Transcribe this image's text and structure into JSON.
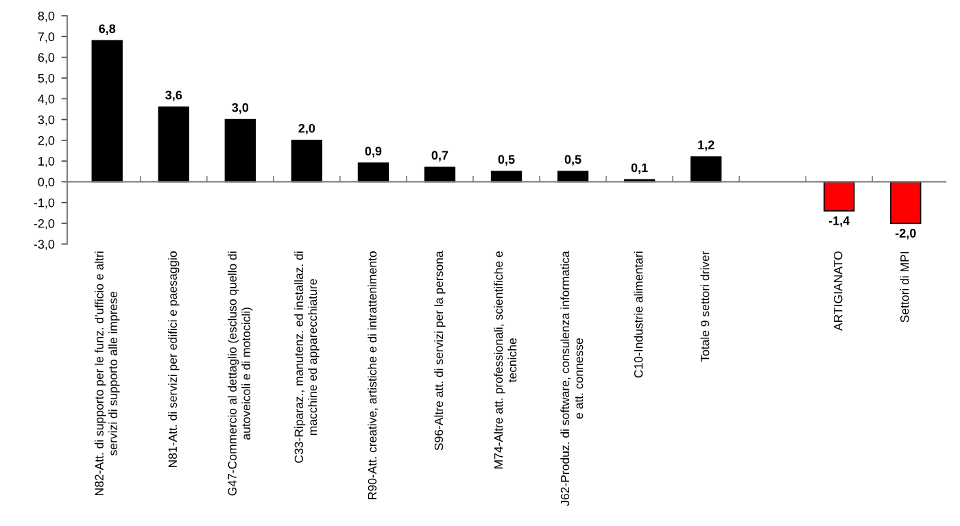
{
  "chart_data": {
    "type": "bar",
    "categories": [
      "N82-Att. di supporto per le funz. d'ufficio e altri\nservizi di supporto alle imprese",
      "N81-Att. di servizi per edifici e paesaggio",
      "G47-Commercio al dettaglio (escluso quello di\nautoveicoli e di motocicli)",
      "C33-Riparaz., manutenz. ed installaz. di\nmacchine ed apparecchiature",
      "R90-Att. creative, artistiche e di intrattenimento",
      "S96-Altre att. di servizi per la persona",
      "M74-Altre att. professionali, scientifiche e\ntecniche",
      "J62-Produz. di software, consulenza informatica\ne att. connesse",
      "C10-Industrie alimentari",
      "Totale 9 settori driver",
      null,
      "ARTIGIANATO",
      "Settori di MPI"
    ],
    "values": [
      6.8,
      3.6,
      3.0,
      2.0,
      0.9,
      0.7,
      0.5,
      0.5,
      0.1,
      1.2,
      null,
      -1.4,
      -2.0
    ],
    "colors": [
      "#000000",
      "#000000",
      "#000000",
      "#000000",
      "#000000",
      "#000000",
      "#000000",
      "#000000",
      "#000000",
      "#000000",
      "#000000",
      "#ff0000",
      "#ff0000"
    ],
    "value_labels": [
      "6,8",
      "3,6",
      "3,0",
      "2,0",
      "0,9",
      "0,7",
      "0,5",
      "0,5",
      "0,1",
      "1,2",
      null,
      "-1,4",
      "-2,0"
    ],
    "ylim": [
      -3.0,
      8.0
    ],
    "yticks": [
      {
        "value": -3.0,
        "label": "-3,0"
      },
      {
        "value": -2.0,
        "label": "-2,0"
      },
      {
        "value": -1.0,
        "label": "-1,0"
      },
      {
        "value": 0.0,
        "label": "0,0"
      },
      {
        "value": 1.0,
        "label": "1,0"
      },
      {
        "value": 2.0,
        "label": "2,0"
      },
      {
        "value": 3.0,
        "label": "3,0"
      },
      {
        "value": 4.0,
        "label": "4,0"
      },
      {
        "value": 5.0,
        "label": "5,0"
      },
      {
        "value": 6.0,
        "label": "6,0"
      },
      {
        "value": 7.0,
        "label": "7,0"
      },
      {
        "value": 8.0,
        "label": "8,0"
      }
    ],
    "legend": false
  }
}
